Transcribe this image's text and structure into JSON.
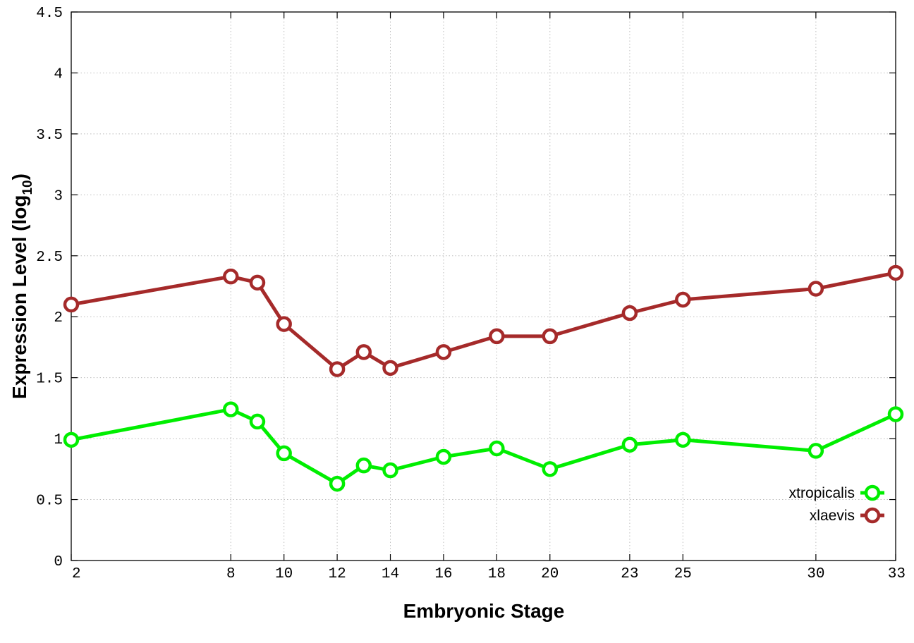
{
  "chart_data": {
    "type": "line",
    "title": "",
    "xlabel": "Embryonic Stage",
    "ylabel_main": "Expression Level (log",
    "ylabel_sub": "10",
    "ylabel_close": ")",
    "x": [
      2,
      8,
      9,
      10,
      12,
      13,
      14,
      16,
      18,
      20,
      23,
      25,
      30,
      33
    ],
    "x_ticks": [
      "2",
      "8",
      "10",
      "12",
      "14",
      "16",
      "18",
      "20",
      "23",
      "25",
      "30",
      "33"
    ],
    "xlim": [
      2,
      33
    ],
    "ylim": [
      0,
      4.5
    ],
    "y_ticks": [
      "0",
      "0.5",
      "1",
      "1.5",
      "2",
      "2.5",
      "3",
      "3.5",
      "4",
      "4.5"
    ],
    "grid": true,
    "legend_position": "bottom-right",
    "series": [
      {
        "name": "xtropicalis",
        "color": "#00ee00",
        "marker": "circle",
        "values": [
          0.99,
          1.24,
          1.14,
          0.88,
          0.63,
          0.78,
          0.74,
          0.85,
          0.92,
          0.75,
          0.95,
          0.99,
          0.9,
          1.2
        ]
      },
      {
        "name": "xlaevis",
        "color": "#a52a2a",
        "marker": "circle",
        "values": [
          2.1,
          2.33,
          2.28,
          1.94,
          1.57,
          1.71,
          1.58,
          1.71,
          1.84,
          1.84,
          2.03,
          2.14,
          2.23,
          2.36
        ]
      }
    ]
  }
}
